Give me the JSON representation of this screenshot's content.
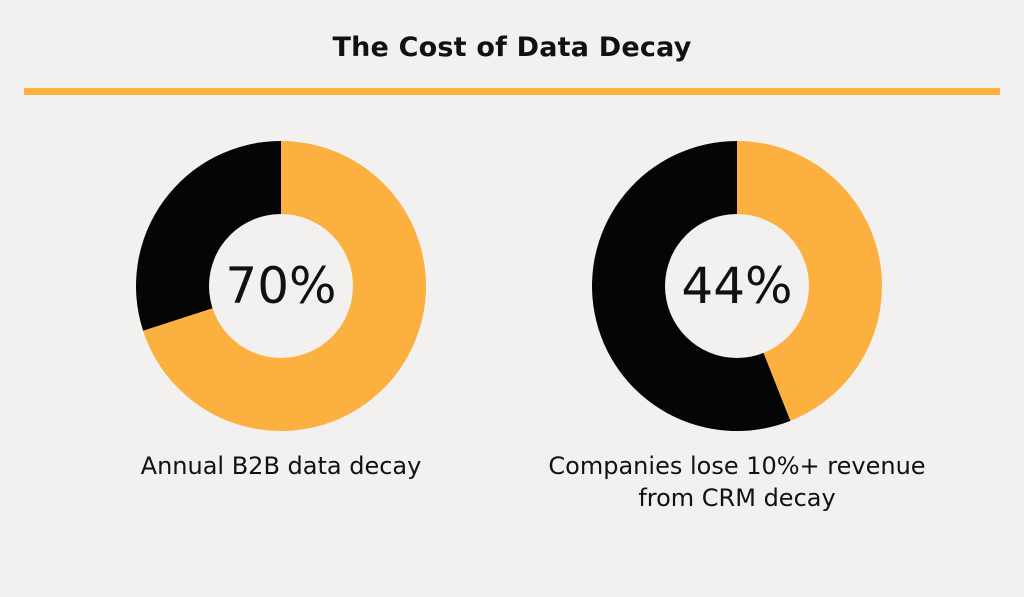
{
  "page": {
    "title": "The Cost of Data Decay"
  },
  "colors": {
    "accent": "#FBB040",
    "dark": "#050505",
    "hole": "#f2f1f0",
    "background": "#f2f1f0"
  },
  "chart_data": [
    {
      "type": "pie",
      "donut": true,
      "value_label": "70%",
      "caption": "Annual B2B data decay",
      "slices": [
        {
          "value": 70,
          "color": "#FBB040"
        },
        {
          "value": 30,
          "color": "#050505"
        }
      ]
    },
    {
      "type": "pie",
      "donut": true,
      "value_label": "44%",
      "caption": "Companies lose 10%+ revenue from CRM decay",
      "slices": [
        {
          "value": 44,
          "color": "#FBB040"
        },
        {
          "value": 56,
          "color": "#050505"
        }
      ]
    }
  ]
}
